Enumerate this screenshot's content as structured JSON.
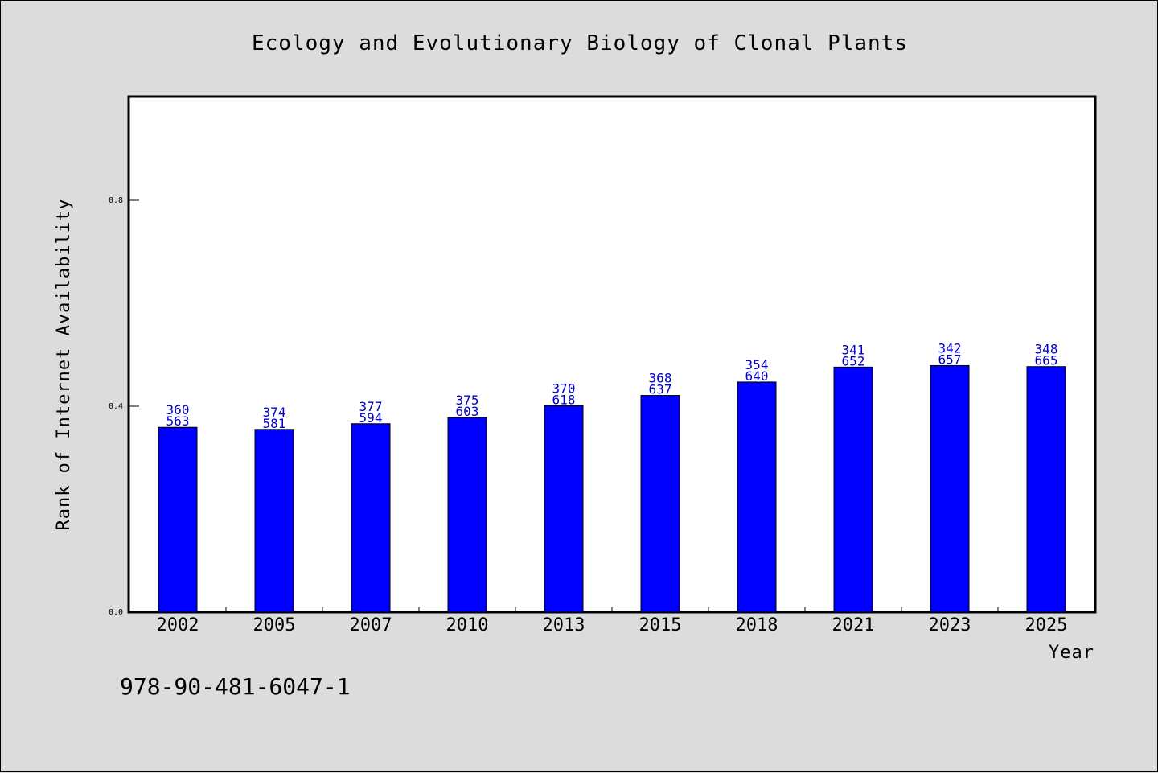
{
  "chart_data": {
    "type": "bar",
    "title": "Ecology and Evolutionary Biology of Clonal Plants",
    "xlabel": "Year",
    "ylabel": "Rank of Internet Availability",
    "ylim": [
      0,
      1.0
    ],
    "yticks": [
      0.0,
      0.4,
      0.8
    ],
    "ytick_labels": [
      "0.0",
      "0.4",
      "0.8"
    ],
    "categories": [
      "2002",
      "2005",
      "2007",
      "2010",
      "2013",
      "2015",
      "2018",
      "2021",
      "2023",
      "2025"
    ],
    "values": [
      0.359,
      0.355,
      0.366,
      0.378,
      0.401,
      0.421,
      0.447,
      0.476,
      0.479,
      0.477
    ],
    "data_labels": [
      "360\n563",
      "374\n581",
      "377\n594",
      "375\n603",
      "370\n618",
      "368\n637",
      "354\n640",
      "341\n652",
      "342\n657",
      "348\n665"
    ],
    "bar_color": "#0000ff",
    "label_color": "#0000cc",
    "grid": false,
    "legend": "none"
  },
  "footer_text": "978-90-481-6047-1"
}
